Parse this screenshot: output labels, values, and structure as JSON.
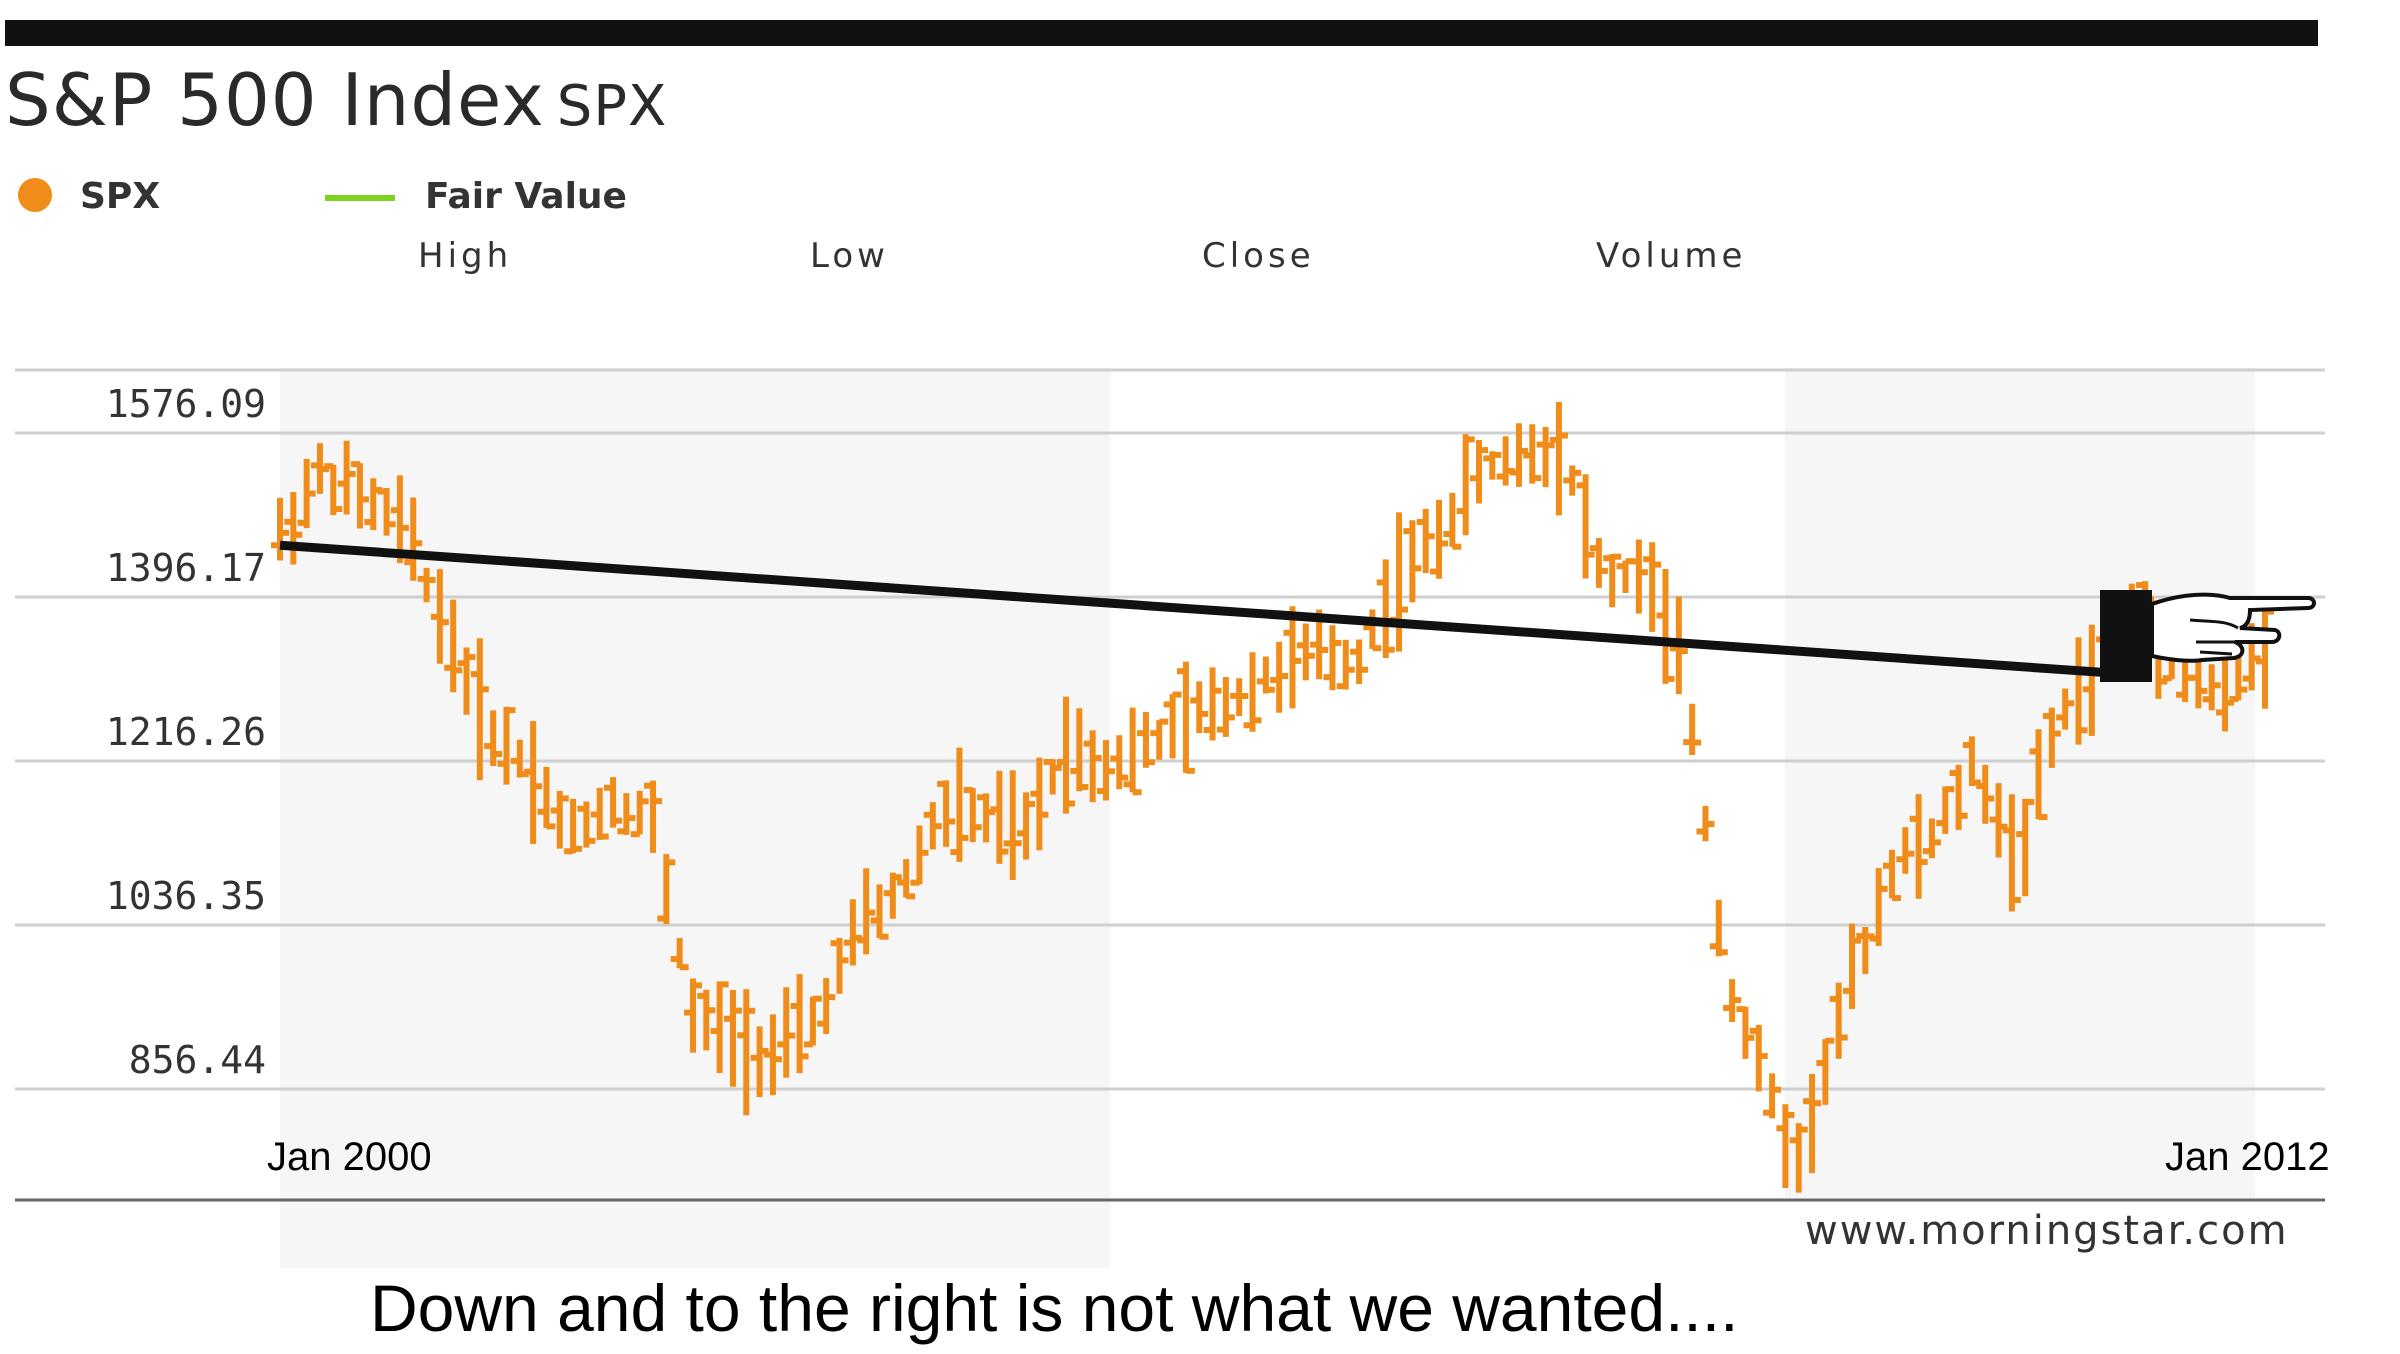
{
  "header": {
    "title": "S&P 500 Index",
    "symbol": "SPX"
  },
  "legend": {
    "spx_label": "SPX",
    "fair_value_label": "Fair Value"
  },
  "columns": [
    "High",
    "Low",
    "Close",
    "Volume"
  ],
  "source": "www.morningstar.com",
  "caption": "Down and to the right is not what we wanted....",
  "colors": {
    "series": "#f08c1a",
    "fair_value": "#7ed321",
    "trendline": "#111111",
    "grid": "#cfcfcf"
  },
  "icons": [
    "pointing-hand-icon"
  ],
  "chart_data": {
    "type": "line",
    "title": "S&P 500 Index",
    "x_labels": {
      "start": "Jan 2000",
      "end": "Jan 2012"
    },
    "y_ticks": [
      "1576.09",
      "1396.17",
      "1216.26",
      "1036.35",
      "856.44"
    ],
    "y_tick_values": [
      1576.09,
      1396.17,
      1216.26,
      1036.35,
      856.44
    ],
    "ylim": [
      680,
      1610
    ],
    "xlim": [
      2000.0,
      2012.0
    ],
    "grid": true,
    "legend_position": "top-left",
    "series": [
      {
        "name": "SPX",
        "x": [
          2000.0,
          2000.25,
          2000.5,
          2000.75,
          2001.0,
          2001.25,
          2001.5,
          2001.75,
          2002.0,
          2002.25,
          2002.5,
          2002.75,
          2003.0,
          2003.25,
          2003.5,
          2003.75,
          2004.0,
          2004.25,
          2004.5,
          2004.75,
          2005.0,
          2005.25,
          2005.5,
          2005.75,
          2006.0,
          2006.25,
          2006.5,
          2006.75,
          2007.0,
          2007.25,
          2007.5,
          2007.75,
          2008.0,
          2008.25,
          2008.5,
          2008.75,
          2009.0,
          2009.17,
          2009.5,
          2009.75,
          2010.0,
          2010.25,
          2010.5,
          2010.75,
          2011.0,
          2011.25,
          2011.5,
          2011.75,
          2012.0
        ],
        "values": [
          1430,
          1500,
          1470,
          1440,
          1330,
          1220,
          1180,
          1100,
          1140,
          1120,
          900,
          880,
          860,
          900,
          1000,
          1040,
          1130,
          1120,
          1100,
          1200,
          1180,
          1200,
          1230,
          1250,
          1280,
          1300,
          1290,
          1380,
          1430,
          1500,
          1520,
          1530,
          1380,
          1390,
          1270,
          940,
          820,
          740,
          940,
          1070,
          1100,
          1180,
          1070,
          1230,
          1290,
          1350,
          1290,
          1250,
          1310
        ]
      },
      {
        "name": "Trend",
        "x": [
          2000.0,
          2011.9
        ],
        "values": [
          1420,
          1280
        ]
      }
    ]
  }
}
